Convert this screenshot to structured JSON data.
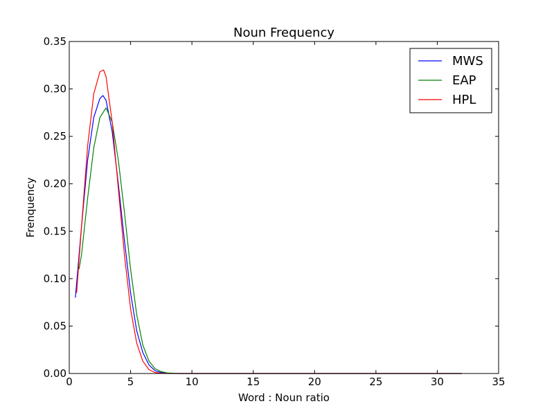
{
  "chart_data": {
    "type": "line",
    "title": "Noun Frequency",
    "xlabel": "Word : Noun ratio",
    "ylabel": "Frenquency",
    "xlim": [
      0,
      35
    ],
    "ylim": [
      0,
      0.35
    ],
    "xticks": [
      0,
      5,
      10,
      15,
      20,
      25,
      30,
      35
    ],
    "yticks": [
      0.0,
      0.05,
      0.1,
      0.15,
      0.2,
      0.25,
      0.3,
      0.35
    ],
    "xtick_labels": [
      "0",
      "5",
      "10",
      "15",
      "20",
      "25",
      "30",
      "35"
    ],
    "ytick_labels": [
      "0.00",
      "0.05",
      "0.10",
      "0.15",
      "0.20",
      "0.25",
      "0.30",
      "0.35"
    ],
    "grid": false,
    "legend_position": "top-right",
    "series": [
      {
        "name": "MWS",
        "color": "#0000ff",
        "x": [
          0.5,
          1.0,
          1.5,
          2.0,
          2.5,
          2.75,
          3.0,
          3.5,
          4.0,
          4.5,
          5.0,
          5.5,
          6.0,
          6.5,
          7.0,
          7.5,
          8.0,
          9.0,
          10.0,
          12.0,
          16.0,
          20.0,
          25.0,
          30.0,
          32.0
        ],
        "y": [
          0.08,
          0.155,
          0.225,
          0.27,
          0.29,
          0.293,
          0.288,
          0.255,
          0.2,
          0.14,
          0.085,
          0.045,
          0.022,
          0.009,
          0.003,
          0.001,
          0.0003,
          0.0,
          0.0,
          0.0,
          0.0,
          0.0,
          0.0,
          0.0,
          0.0
        ]
      },
      {
        "name": "EAP",
        "color": "#008000",
        "x": [
          0.8,
          1.0,
          1.5,
          2.0,
          2.5,
          3.0,
          3.5,
          4.0,
          4.5,
          5.0,
          5.5,
          6.0,
          6.5,
          7.0,
          7.5,
          8.0,
          9.0,
          10.0,
          12.0,
          16.0,
          20.0,
          25.0,
          30.0,
          32.0
        ],
        "y": [
          0.11,
          0.125,
          0.185,
          0.238,
          0.27,
          0.28,
          0.265,
          0.225,
          0.17,
          0.11,
          0.062,
          0.03,
          0.013,
          0.005,
          0.002,
          0.0006,
          0.0,
          0.0,
          0.0,
          0.0,
          0.0,
          0.0,
          0.0,
          0.0
        ]
      },
      {
        "name": "HPL",
        "color": "#ff0000",
        "x": [
          0.6,
          1.0,
          1.5,
          2.0,
          2.5,
          2.8,
          3.0,
          3.5,
          4.0,
          4.5,
          5.0,
          5.5,
          6.0,
          6.5,
          7.0,
          7.5,
          8.0,
          9.0,
          10.0,
          12.0,
          16.0,
          20.0,
          25.0,
          30.0,
          32.0
        ],
        "y": [
          0.085,
          0.155,
          0.24,
          0.295,
          0.318,
          0.32,
          0.313,
          0.265,
          0.195,
          0.125,
          0.068,
          0.032,
          0.013,
          0.004,
          0.001,
          0.0003,
          0.0,
          0.0,
          0.0,
          0.0,
          0.0,
          0.0,
          0.0,
          0.0,
          0.0
        ]
      }
    ]
  }
}
